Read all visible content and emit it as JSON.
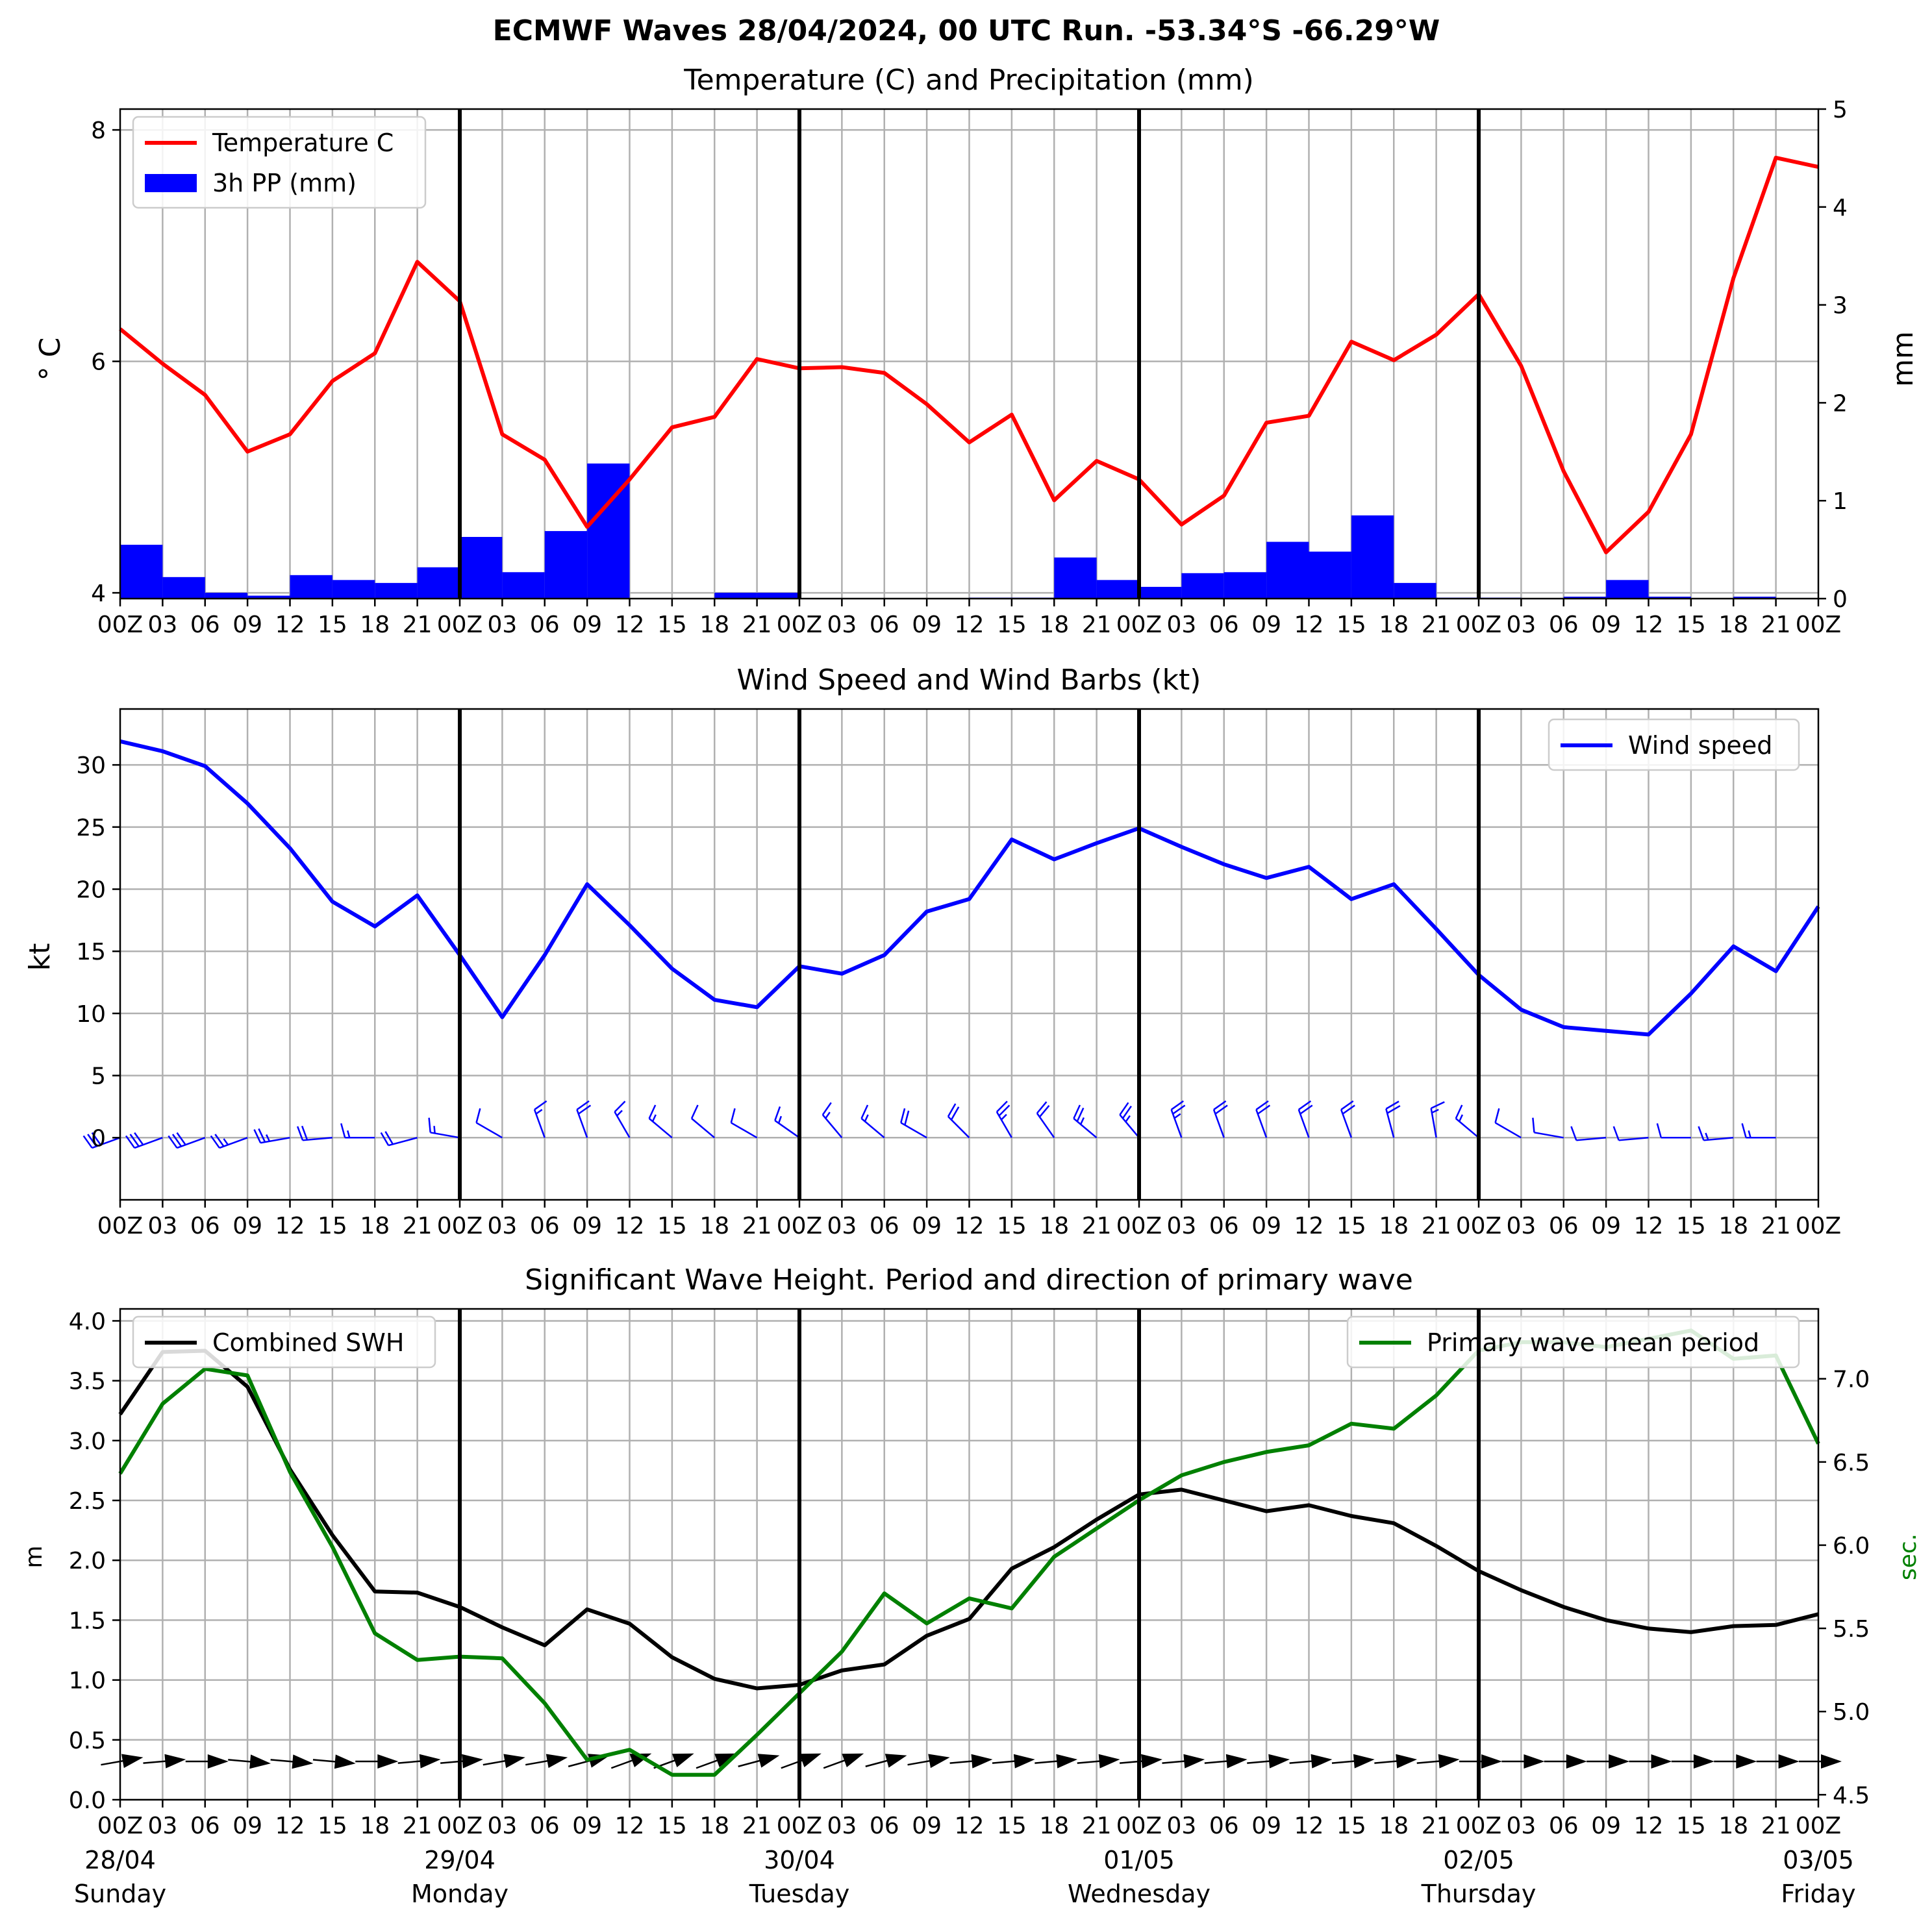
{
  "figure": {
    "suptitle": "ECMWF Waves 28/04/2024, 00 UTC Run. -53.34°S -66.29°W"
  },
  "colors": {
    "temperature": "#ff0000",
    "precip": "#0000ff",
    "wind": "#0000ff",
    "swh": "#000000",
    "period": "#008000",
    "grid": "#b0b0b0",
    "axis": "#000000"
  },
  "chart_data": [
    {
      "type": "line",
      "title": "Temperature (C) and Precipitation (mm)",
      "ylabel": "° C",
      "ylabel_right": "mm",
      "ylim": [
        3.95,
        8.18
      ],
      "ylim_right": [
        0,
        5
      ],
      "yticks": [
        4,
        6,
        8
      ],
      "yticks_right": [
        0,
        1,
        2,
        3,
        4,
        5
      ],
      "xtick_labels": [
        "00Z",
        "03",
        "06",
        "09",
        "12",
        "15",
        "18",
        "21",
        "00Z",
        "03",
        "06",
        "09",
        "12",
        "15",
        "18",
        "21",
        "00Z",
        "03",
        "06",
        "09",
        "12",
        "15",
        "18",
        "21",
        "00Z",
        "03",
        "06",
        "09",
        "12",
        "15",
        "18",
        "21",
        "00Z",
        "03",
        "06",
        "09",
        "12",
        "15",
        "18",
        "21",
        "00Z"
      ],
      "grid": true,
      "legend": "upper-left",
      "series": [
        {
          "name": "Temperature C",
          "kind": "line",
          "values": [
            6.28,
            5.98,
            5.71,
            5.22,
            5.37,
            5.83,
            6.07,
            6.86,
            6.52,
            5.37,
            5.15,
            4.57,
            4.98,
            5.43,
            5.52,
            6.02,
            5.94,
            5.95,
            5.9,
            5.63,
            5.3,
            5.54,
            4.8,
            5.14,
            4.98,
            4.59,
            4.84,
            5.47,
            5.53,
            6.17,
            6.01,
            6.23,
            6.58,
            5.96,
            5.05,
            4.35,
            4.7,
            5.37,
            6.72,
            7.76,
            7.68
          ]
        },
        {
          "name": "3h PP (mm)",
          "kind": "bar",
          "values": [
            0.55,
            0.22,
            0.06,
            0.03,
            0.24,
            0.19,
            0.16,
            0.32,
            0.63,
            0.27,
            0.69,
            1.38,
            0,
            0,
            0.06,
            0.06,
            0,
            0,
            0,
            0,
            0.01,
            0.01,
            0.42,
            0.19,
            0.12,
            0.26,
            0.27,
            0.58,
            0.48,
            0.85,
            0.16,
            0.01,
            0.01,
            0,
            0.02,
            0.19,
            0.02,
            0,
            0.02,
            0
          ]
        }
      ]
    },
    {
      "type": "line",
      "title": "Wind Speed and Wind Barbs (kt)",
      "ylabel": "kt",
      "ylim": [
        -5,
        34.5
      ],
      "yticks": [
        0,
        5,
        10,
        15,
        20,
        25,
        30
      ],
      "xtick_labels": [
        "00Z",
        "03",
        "06",
        "09",
        "12",
        "15",
        "18",
        "21",
        "00Z",
        "03",
        "06",
        "09",
        "12",
        "15",
        "18",
        "21",
        "00Z",
        "03",
        "06",
        "09",
        "12",
        "15",
        "18",
        "21",
        "00Z",
        "03",
        "06",
        "09",
        "12",
        "15",
        "18",
        "21",
        "00Z",
        "03",
        "06",
        "09",
        "12",
        "15",
        "18",
        "21",
        "00Z"
      ],
      "grid": true,
      "legend": "upper-right",
      "series": [
        {
          "name": "Wind speed",
          "values": [
            31.9,
            31.1,
            29.9,
            26.9,
            23.3,
            19.0,
            17.0,
            19.5,
            14.7,
            9.7,
            14.7,
            20.4,
            17.1,
            13.6,
            11.1,
            10.5,
            13.8,
            13.2,
            14.7,
            18.2,
            19.2,
            24.0,
            22.4,
            23.7,
            24.9,
            23.4,
            22.0,
            20.9,
            21.8,
            19.2,
            20.4,
            16.8,
            13.1,
            10.3,
            8.9,
            8.6,
            8.3,
            11.6,
            15.4,
            13.4,
            18.6
          ]
        }
      ],
      "barb_direction_deg": [
        290,
        290,
        290,
        290,
        280,
        275,
        270,
        285,
        260,
        240,
        200,
        200,
        210,
        230,
        230,
        240,
        235,
        220,
        230,
        240,
        225,
        210,
        215,
        230,
        220,
        200,
        200,
        200,
        200,
        200,
        195,
        190,
        230,
        240,
        260,
        275,
        275,
        270,
        275,
        270,
        270
      ]
    },
    {
      "type": "line",
      "title": "Significant Wave Height. Period and direction of primary wave",
      "ylabel": "m",
      "ylabel_right": "sec.",
      "ylim": [
        0,
        4.1
      ],
      "ylim_right": [
        4.47,
        7.42
      ],
      "yticks": [
        0.0,
        0.5,
        1.0,
        1.5,
        2.0,
        2.5,
        3.0,
        3.5,
        4.0
      ],
      "ytick_labels": [
        "0.0",
        "0.5",
        "1.0",
        "1.5",
        "2.0",
        "2.5",
        "3.0",
        "3.5",
        "4.0"
      ],
      "yticks_right": [
        4.5,
        5.0,
        5.5,
        6.0,
        6.5,
        7.0
      ],
      "ytick_labels_right": [
        "4.5",
        "5.0",
        "5.5",
        "6.0",
        "6.5",
        "7.0"
      ],
      "xtick_labels": [
        "00Z",
        "03",
        "06",
        "09",
        "12",
        "15",
        "18",
        "21",
        "00Z",
        "03",
        "06",
        "09",
        "12",
        "15",
        "18",
        "21",
        "00Z",
        "03",
        "06",
        "09",
        "12",
        "15",
        "18",
        "21",
        "00Z",
        "03",
        "06",
        "09",
        "12",
        "15",
        "18",
        "21",
        "00Z",
        "03",
        "06",
        "09",
        "12",
        "15",
        "18",
        "21",
        "00Z"
      ],
      "date_labels": [
        {
          "date": "28/04",
          "day": "Sunday"
        },
        {
          "date": "29/04",
          "day": "Monday"
        },
        {
          "date": "30/04",
          "day": "Tuesday"
        },
        {
          "date": "01/05",
          "day": "Wednesday"
        },
        {
          "date": "02/05",
          "day": "Thursday"
        },
        {
          "date": "03/05",
          "day": "Friday"
        }
      ],
      "grid": true,
      "series": [
        {
          "name": "Combined SWH",
          "axis": "left",
          "legend": "upper-left",
          "values": [
            3.22,
            3.74,
            3.75,
            3.45,
            2.76,
            2.21,
            1.74,
            1.73,
            1.61,
            1.44,
            1.29,
            1.59,
            1.47,
            1.19,
            1.01,
            0.93,
            0.96,
            1.08,
            1.13,
            1.37,
            1.51,
            1.93,
            2.11,
            2.34,
            2.55,
            2.59,
            2.5,
            2.41,
            2.46,
            2.37,
            2.31,
            2.12,
            1.91,
            1.75,
            1.61,
            1.5,
            1.43,
            1.4,
            1.45,
            1.46,
            1.55
          ]
        },
        {
          "name": "Primary wave mean period",
          "axis": "right",
          "legend": "upper-right",
          "values": [
            6.43,
            6.85,
            7.06,
            7.02,
            6.44,
            5.99,
            5.47,
            5.31,
            5.33,
            5.32,
            5.05,
            4.71,
            4.77,
            4.62,
            4.62,
            4.86,
            5.11,
            5.36,
            5.71,
            5.53,
            5.68,
            5.62,
            5.93,
            6.1,
            6.27,
            6.42,
            6.5,
            6.56,
            6.6,
            6.73,
            6.7,
            6.9,
            7.17,
            7.22,
            7.22,
            7.19,
            7.24,
            7.29,
            7.12,
            7.14,
            6.61
          ]
        }
      ],
      "arrow_direction_deg": [
        260,
        265,
        270,
        275,
        275,
        275,
        270,
        265,
        265,
        260,
        260,
        255,
        250,
        250,
        250,
        255,
        250,
        250,
        255,
        260,
        265,
        265,
        265,
        265,
        265,
        265,
        265,
        265,
        265,
        265,
        265,
        265,
        270,
        270,
        270,
        270,
        270,
        270,
        270,
        270,
        270
      ]
    }
  ]
}
